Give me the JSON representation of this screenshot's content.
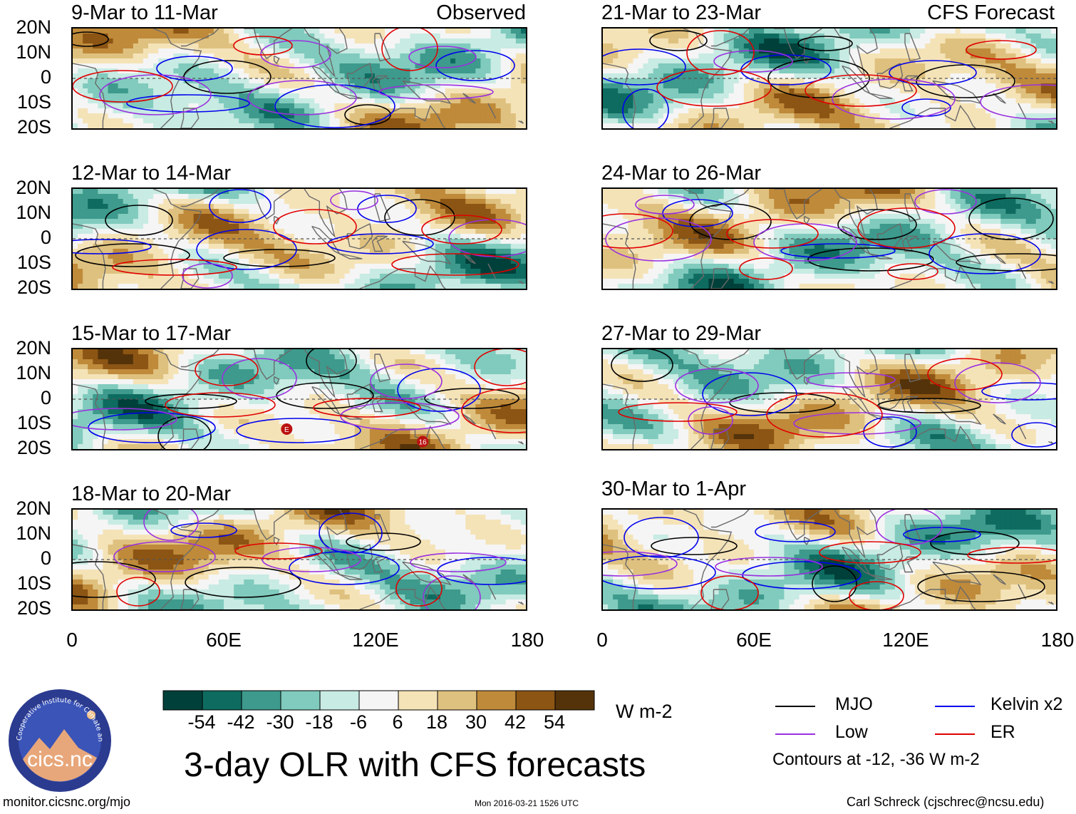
{
  "chart_data": {
    "type": "heatmap",
    "title": "3-day OLR with CFS forecasts",
    "variable": "OLR anomaly",
    "units": "W m-2",
    "contour_note": "Contours at -12, -36 W m-2",
    "lat_ticks": [
      "20N",
      "10N",
      "0",
      "10S",
      "20S"
    ],
    "lon_ticks": [
      "0",
      "60E",
      "120E",
      "180"
    ],
    "lat_range": [
      -20,
      20
    ],
    "lon_range": [
      0,
      180
    ],
    "colorbar": {
      "ticks": [
        "-54",
        "-42",
        "-30",
        "-18",
        "-6",
        "6",
        "18",
        "30",
        "42",
        "54"
      ],
      "colors": [
        "#00403a",
        "#0e6b60",
        "#3d9a8c",
        "#80cbbd",
        "#c8ebe3",
        "#f5f5f5",
        "#f5e3b8",
        "#dfc17f",
        "#bf8a3a",
        "#8c5514",
        "#55330a"
      ]
    },
    "left_column_tag": "Observed",
    "right_column_tag": "CFS Forecast",
    "panels": [
      {
        "period": "9-Mar to 11-Mar",
        "source": "Observed"
      },
      {
        "period": "12-Mar to 14-Mar",
        "source": "Observed"
      },
      {
        "period": "15-Mar to 17-Mar",
        "source": "Observed",
        "markers": [
          "E",
          "16"
        ]
      },
      {
        "period": "18-Mar to 20-Mar",
        "source": "Observed"
      },
      {
        "period": "21-Mar to 23-Mar",
        "source": "CFS Forecast"
      },
      {
        "period": "24-Mar to 26-Mar",
        "source": "CFS Forecast"
      },
      {
        "period": "27-Mar to 29-Mar",
        "source": "CFS Forecast"
      },
      {
        "period": "30-Mar to 1-Apr",
        "source": "CFS Forecast"
      }
    ],
    "legend": [
      {
        "label": "MJO",
        "color": "#000000"
      },
      {
        "label": "Kelvin x2",
        "color": "#0000ee"
      },
      {
        "label": "Low",
        "color": "#9a30e0"
      },
      {
        "label": "ER",
        "color": "#e00000"
      }
    ]
  },
  "footer": {
    "logo_text": "cics.nc",
    "logo_ring_text": "Cooperative Institute for Climate and Satellites",
    "url": "monitor.cicsnc.org/mjo",
    "timestamp": "Mon 2016-03-21 1526 UTC",
    "credit": "Carl Schreck (cjschrec@ncsu.edu)"
  }
}
